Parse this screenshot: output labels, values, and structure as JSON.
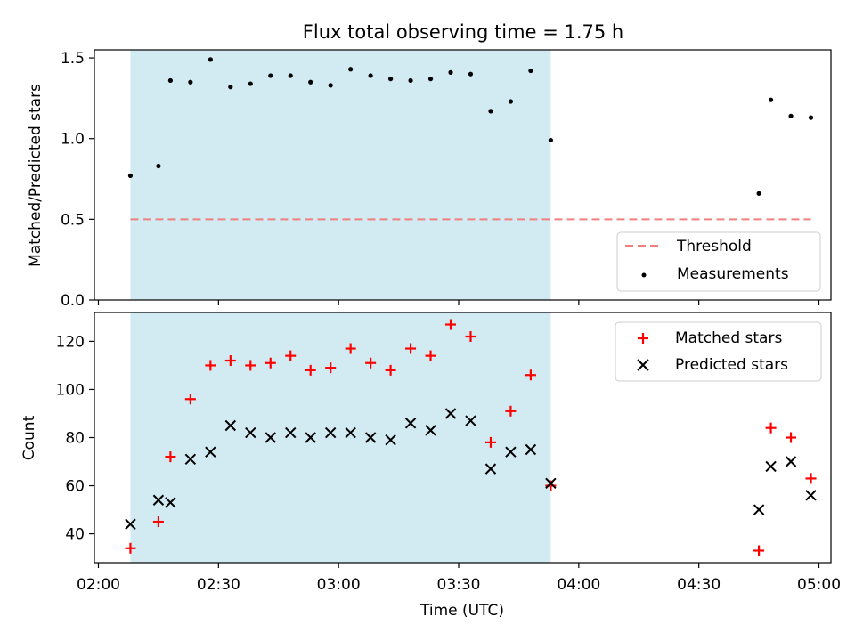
{
  "figure": {
    "title": "Flux total observing time = 1.75 h",
    "xlabel": "Time (UTC)",
    "x_tick_labels": [
      "02:00",
      "02:30",
      "03:00",
      "03:30",
      "04:00",
      "04:30",
      "05:00"
    ]
  },
  "colors": {
    "shade": "#add8e6",
    "threshold": "#f08080",
    "matched": "#ff0000",
    "predicted": "#000000",
    "measurements": "#000000"
  },
  "chart_data": [
    {
      "type": "scatter",
      "ylabel": "Matched/Predicted stars",
      "x_range": [
        "01:59",
        "05:03"
      ],
      "ylim": [
        0,
        1.55
      ],
      "y_ticks": [
        0,
        0.5,
        1.0,
        1.5
      ],
      "y_tick_labels": [
        "0.0",
        "0.5",
        "1.0",
        "1.5"
      ],
      "shaded_interval": [
        "02:08",
        "03:53"
      ],
      "threshold": {
        "name": "Threshold",
        "value": 0.5,
        "x_start": "02:08",
        "x_end": "04:58"
      },
      "legend": {
        "placement": "lower-right",
        "entries": [
          "Threshold",
          "Measurements"
        ]
      },
      "series": [
        {
          "name": "Measurements",
          "points": [
            [
              "02:08",
              0.77
            ],
            [
              "02:15",
              0.83
            ],
            [
              "02:18",
              1.36
            ],
            [
              "02:23",
              1.35
            ],
            [
              "02:28",
              1.49
            ],
            [
              "02:33",
              1.32
            ],
            [
              "02:38",
              1.34
            ],
            [
              "02:43",
              1.39
            ],
            [
              "02:48",
              1.39
            ],
            [
              "02:53",
              1.35
            ],
            [
              "02:58",
              1.33
            ],
            [
              "03:03",
              1.43
            ],
            [
              "03:08",
              1.39
            ],
            [
              "03:13",
              1.37
            ],
            [
              "03:18",
              1.36
            ],
            [
              "03:23",
              1.37
            ],
            [
              "03:28",
              1.41
            ],
            [
              "03:33",
              1.4
            ],
            [
              "03:38",
              1.17
            ],
            [
              "03:43",
              1.23
            ],
            [
              "03:48",
              1.42
            ],
            [
              "03:53",
              0.99
            ],
            [
              "04:45",
              0.66
            ],
            [
              "04:48",
              1.24
            ],
            [
              "04:53",
              1.14
            ],
            [
              "04:58",
              1.13
            ]
          ]
        }
      ]
    },
    {
      "type": "scatter",
      "ylabel": "Count",
      "x_range": [
        "01:59",
        "05:03"
      ],
      "ylim": [
        28,
        132
      ],
      "y_ticks": [
        40,
        60,
        80,
        100,
        120
      ],
      "y_tick_labels": [
        "40",
        "60",
        "80",
        "100",
        "120"
      ],
      "shaded_interval": [
        "02:08",
        "03:53"
      ],
      "legend": {
        "placement": "upper-right",
        "entries": [
          "Matched stars",
          "Predicted stars"
        ]
      },
      "series": [
        {
          "name": "Matched stars",
          "marker": "plus",
          "points": [
            [
              "02:08",
              34
            ],
            [
              "02:15",
              45
            ],
            [
              "02:18",
              72
            ],
            [
              "02:23",
              96
            ],
            [
              "02:28",
              110
            ],
            [
              "02:33",
              112
            ],
            [
              "02:38",
              110
            ],
            [
              "02:43",
              111
            ],
            [
              "02:48",
              114
            ],
            [
              "02:53",
              108
            ],
            [
              "02:58",
              109
            ],
            [
              "03:03",
              117
            ],
            [
              "03:08",
              111
            ],
            [
              "03:13",
              108
            ],
            [
              "03:18",
              117
            ],
            [
              "03:23",
              114
            ],
            [
              "03:28",
              127
            ],
            [
              "03:33",
              122
            ],
            [
              "03:38",
              78
            ],
            [
              "03:43",
              91
            ],
            [
              "03:48",
              106
            ],
            [
              "03:53",
              60
            ],
            [
              "04:45",
              33
            ],
            [
              "04:48",
              84
            ],
            [
              "04:53",
              80
            ],
            [
              "04:58",
              63
            ]
          ]
        },
        {
          "name": "Predicted stars",
          "marker": "x",
          "points": [
            [
              "02:08",
              44
            ],
            [
              "02:15",
              54
            ],
            [
              "02:18",
              53
            ],
            [
              "02:23",
              71
            ],
            [
              "02:28",
              74
            ],
            [
              "02:33",
              85
            ],
            [
              "02:38",
              82
            ],
            [
              "02:43",
              80
            ],
            [
              "02:48",
              82
            ],
            [
              "02:53",
              80
            ],
            [
              "02:58",
              82
            ],
            [
              "03:03",
              82
            ],
            [
              "03:08",
              80
            ],
            [
              "03:13",
              79
            ],
            [
              "03:18",
              86
            ],
            [
              "03:23",
              83
            ],
            [
              "03:28",
              90
            ],
            [
              "03:33",
              87
            ],
            [
              "03:38",
              67
            ],
            [
              "03:43",
              74
            ],
            [
              "03:48",
              75
            ],
            [
              "03:53",
              61
            ],
            [
              "04:45",
              50
            ],
            [
              "04:48",
              68
            ],
            [
              "04:53",
              70
            ],
            [
              "04:58",
              56
            ]
          ]
        }
      ]
    }
  ]
}
